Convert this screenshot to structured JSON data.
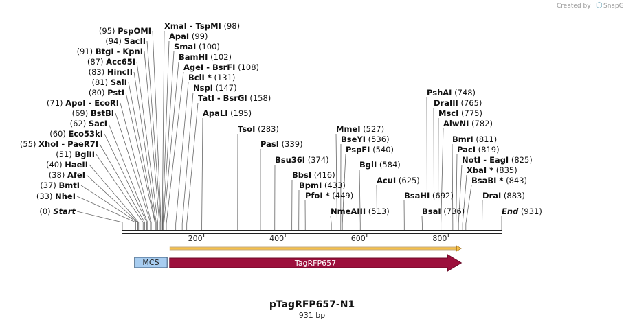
{
  "app": {
    "created_by": "Created by",
    "brand": "SnapGene"
  },
  "plasmid": {
    "name": "pTagRFP657-N1",
    "length_label": "931 bp",
    "length": 931
  },
  "axis": {
    "start": 1,
    "end": 931,
    "ticks": [
      200,
      400,
      600,
      800
    ],
    "tick_labels": [
      "200",
      "400",
      "600",
      "800"
    ]
  },
  "sites": [
    {
      "name": "Start",
      "pos": 0,
      "pos_label": "(0)",
      "side": "left",
      "italic": true
    },
    {
      "name": "NheI",
      "pos": 33,
      "pos_label": "(33)",
      "side": "left"
    },
    {
      "name": "BmtI",
      "pos": 37,
      "pos_label": "(37)",
      "side": "left"
    },
    {
      "name": "AfeI",
      "pos": 38,
      "pos_label": "(38)",
      "side": "left"
    },
    {
      "name": "HaeII",
      "pos": 40,
      "pos_label": "(40)",
      "side": "left"
    },
    {
      "name": "BglII",
      "pos": 51,
      "pos_label": "(51)",
      "side": "left"
    },
    {
      "name": "XhoI  -  PaeR7I",
      "pos": 55,
      "pos_label": "(55)",
      "side": "left"
    },
    {
      "name": "SacI",
      "pos": 62,
      "pos_label": "(62)",
      "side": "left"
    },
    {
      "name": "Eco53kI",
      "pos": 60,
      "pos_label": "(60)",
      "side": "left"
    },
    {
      "name": "BstBI",
      "pos": 69,
      "pos_label": "(69)",
      "side": "left"
    },
    {
      "name": "ApoI  -  EcoRI",
      "pos": 71,
      "pos_label": "(71)",
      "side": "left"
    },
    {
      "name": "PstI",
      "pos": 80,
      "pos_label": "(80)",
      "side": "left"
    },
    {
      "name": "SalI",
      "pos": 81,
      "pos_label": "(81)",
      "side": "left"
    },
    {
      "name": "HincII",
      "pos": 83,
      "pos_label": "(83)",
      "side": "left"
    },
    {
      "name": "Acc65I",
      "pos": 87,
      "pos_label": "(87)",
      "side": "left"
    },
    {
      "name": "BtgI  -  KpnI",
      "pos": 91,
      "pos_label": "(91)",
      "side": "left"
    },
    {
      "name": "SacII",
      "pos": 94,
      "pos_label": "(94)",
      "side": "left"
    },
    {
      "name": "PspOMI",
      "pos": 95,
      "pos_label": "(95)",
      "side": "left"
    },
    {
      "name": "XmaI  -  TspMI",
      "pos": 98,
      "pos_label": "(98)",
      "side": "right"
    },
    {
      "name": "ApaI",
      "pos": 99,
      "pos_label": "(99)",
      "side": "right"
    },
    {
      "name": "SmaI",
      "pos": 100,
      "pos_label": "(100)",
      "side": "right"
    },
    {
      "name": "BamHI",
      "pos": 102,
      "pos_label": "(102)",
      "side": "right"
    },
    {
      "name": "AgeI  -  BsrFI",
      "pos": 108,
      "pos_label": "(108)",
      "side": "right"
    },
    {
      "name": "BclI *",
      "pos": 131,
      "pos_label": "(131)",
      "side": "right"
    },
    {
      "name": "NspI",
      "pos": 147,
      "pos_label": "(147)",
      "side": "right"
    },
    {
      "name": "TatI  -  BsrGI",
      "pos": 158,
      "pos_label": "(158)",
      "side": "right"
    },
    {
      "name": "ApaLI",
      "pos": 195,
      "pos_label": "(195)",
      "side": "right"
    },
    {
      "name": "TsoI",
      "pos": 283,
      "pos_label": "(283)",
      "side": "right"
    },
    {
      "name": "PasI",
      "pos": 339,
      "pos_label": "(339)",
      "side": "right"
    },
    {
      "name": "Bsu36I",
      "pos": 374,
      "pos_label": "(374)",
      "side": "right"
    },
    {
      "name": "BbsI",
      "pos": 416,
      "pos_label": "(416)",
      "side": "right"
    },
    {
      "name": "BpmI",
      "pos": 433,
      "pos_label": "(433)",
      "side": "right"
    },
    {
      "name": "PfoI *",
      "pos": 449,
      "pos_label": "(449)",
      "side": "right"
    },
    {
      "name": "NmeAIII",
      "pos": 513,
      "pos_label": "(513)",
      "side": "right"
    },
    {
      "name": "MmeI",
      "pos": 527,
      "pos_label": "(527)",
      "side": "right"
    },
    {
      "name": "BseYI",
      "pos": 536,
      "pos_label": "(536)",
      "side": "right"
    },
    {
      "name": "PspFI",
      "pos": 540,
      "pos_label": "(540)",
      "side": "right"
    },
    {
      "name": "BglI",
      "pos": 584,
      "pos_label": "(584)",
      "side": "right"
    },
    {
      "name": "AcuI",
      "pos": 625,
      "pos_label": "(625)",
      "side": "right"
    },
    {
      "name": "BsaHI",
      "pos": 692,
      "pos_label": "(692)",
      "side": "right"
    },
    {
      "name": "BsaI",
      "pos": 736,
      "pos_label": "(736)",
      "side": "right"
    },
    {
      "name": "PshAI",
      "pos": 748,
      "pos_label": "(748)",
      "side": "right"
    },
    {
      "name": "DraIII",
      "pos": 765,
      "pos_label": "(765)",
      "side": "right"
    },
    {
      "name": "MscI",
      "pos": 775,
      "pos_label": "(775)",
      "side": "right"
    },
    {
      "name": "AlwNI",
      "pos": 782,
      "pos_label": "(782)",
      "side": "right"
    },
    {
      "name": "BmrI",
      "pos": 811,
      "pos_label": "(811)",
      "side": "right"
    },
    {
      "name": "PacI",
      "pos": 819,
      "pos_label": "(819)",
      "side": "right"
    },
    {
      "name": "NotI  -  EagI",
      "pos": 825,
      "pos_label": "(825)",
      "side": "right"
    },
    {
      "name": "XbaI *",
      "pos": 835,
      "pos_label": "(835)",
      "side": "right"
    },
    {
      "name": "BsaBI *",
      "pos": 843,
      "pos_label": "(843)",
      "side": "right"
    },
    {
      "name": "DraI",
      "pos": 883,
      "pos_label": "(883)",
      "side": "right"
    },
    {
      "name": "End",
      "pos": 931,
      "pos_label": "(931)",
      "side": "right",
      "italic": true
    }
  ],
  "features": [
    {
      "name": "MCS",
      "start": 30,
      "end": 110,
      "color": "#a8cdf0",
      "border": "#335577",
      "text_color": "#222222",
      "shape": "box"
    },
    {
      "name": "TagRFP657",
      "start": 116,
      "end": 832,
      "color": "#9c0f3c",
      "border": "#6a0a28",
      "text_color": "#ffffff",
      "shape": "arrow"
    },
    {
      "name": "",
      "start": 116,
      "end": 832,
      "color": "#f5c04a",
      "border": "#8a5a10",
      "shape": "orf"
    }
  ]
}
